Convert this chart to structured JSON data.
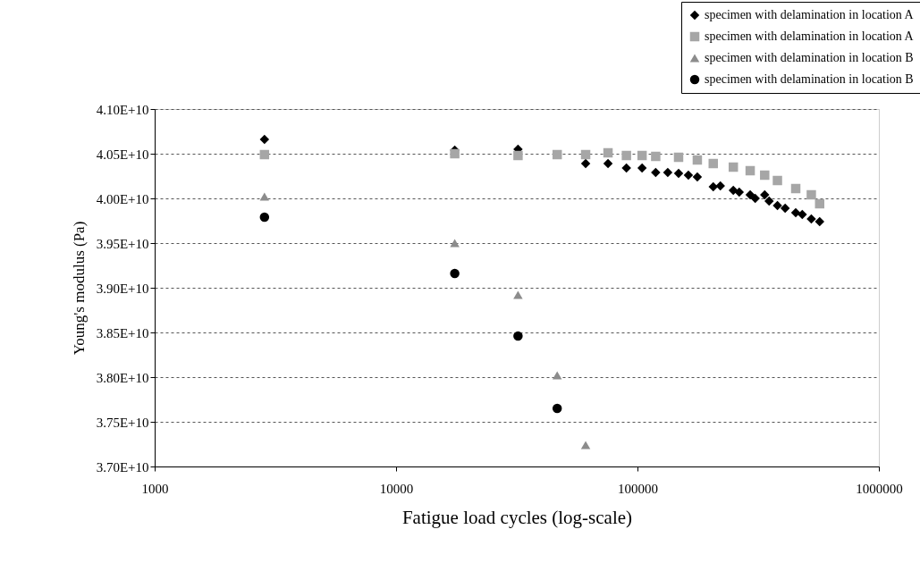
{
  "chart_data": {
    "type": "scatter",
    "xlabel": "Fatigue load cycles (log-scale)",
    "ylabel": "Young's modulus (Pa)",
    "log": "x",
    "xlim": [
      1000,
      1000000
    ],
    "xticks": [
      1000,
      10000,
      100000,
      1000000
    ],
    "ylim": [
      37000000000,
      41000000000
    ],
    "yticks": [
      {
        "value": 37000000000,
        "label": "3.70E+10"
      },
      {
        "value": 37500000000,
        "label": "3.75E+10"
      },
      {
        "value": 38000000000,
        "label": "3.80E+10"
      },
      {
        "value": 38500000000,
        "label": "3.85E+10"
      },
      {
        "value": 39000000000,
        "label": "3.90E+10"
      },
      {
        "value": 39500000000,
        "label": "3.95E+10"
      },
      {
        "value": 40000000000,
        "label": "4.00E+10"
      },
      {
        "value": 40500000000,
        "label": "4.05E+10"
      },
      {
        "value": 41000000000,
        "label": "4.10E+10"
      }
    ],
    "grid": "y",
    "legend": "top right",
    "series": [
      {
        "name": "specimen with delamination in location A",
        "color": "#000000",
        "marker": "diamond",
        "x": [
          2850,
          17500,
          32000,
          61000,
          75500,
          90000,
          104500,
          119000,
          133500,
          148000,
          162500,
          177000,
          206000,
          220500,
          249500,
          264000,
          293000,
          307500,
          336500,
          351000,
          380000,
          409000,
          452500,
          481500,
          525000,
          568500
        ],
        "values": [
          40660000000,
          40540000000,
          40550000000,
          40390000000,
          40390000000,
          40340000000,
          40340000000,
          40290000000,
          40290000000,
          40280000000,
          40260000000,
          40240000000,
          40130000000,
          40140000000,
          40090000000,
          40070000000,
          40040000000,
          40000000000,
          40040000000,
          39970000000,
          39920000000,
          39890000000,
          39840000000,
          39820000000,
          39770000000,
          39740000000
        ]
      },
      {
        "name": "specimen with delamination in location A",
        "color": "#a6a6a6",
        "marker": "square",
        "x": [
          2850,
          17500,
          32000,
          46500,
          61000,
          75500,
          90000,
          104500,
          119000,
          148000,
          177000,
          206000,
          249500,
          293000,
          336500,
          380000,
          452500,
          525000,
          568500
        ],
        "values": [
          40490000000,
          40500000000,
          40480000000,
          40490000000,
          40490000000,
          40510000000,
          40480000000,
          40480000000,
          40470000000,
          40460000000,
          40430000000,
          40390000000,
          40350000000,
          40310000000,
          40260000000,
          40200000000,
          40110000000,
          40040000000,
          39940000000
        ]
      },
      {
        "name": "specimen with delamination in location B",
        "color": "#8c8c8c",
        "marker": "triangle",
        "x": [
          2850,
          17500,
          32000,
          46500,
          61000
        ],
        "values": [
          40020000000,
          39500000000,
          38920000000,
          38020000000,
          37240000000
        ]
      },
      {
        "name": "specimen with delamination in location B",
        "color": "#000000",
        "marker": "circle",
        "x": [
          2850,
          17500,
          32000,
          46500
        ],
        "values": [
          39790000000,
          39160000000,
          38460000000,
          37650000000
        ]
      }
    ]
  }
}
